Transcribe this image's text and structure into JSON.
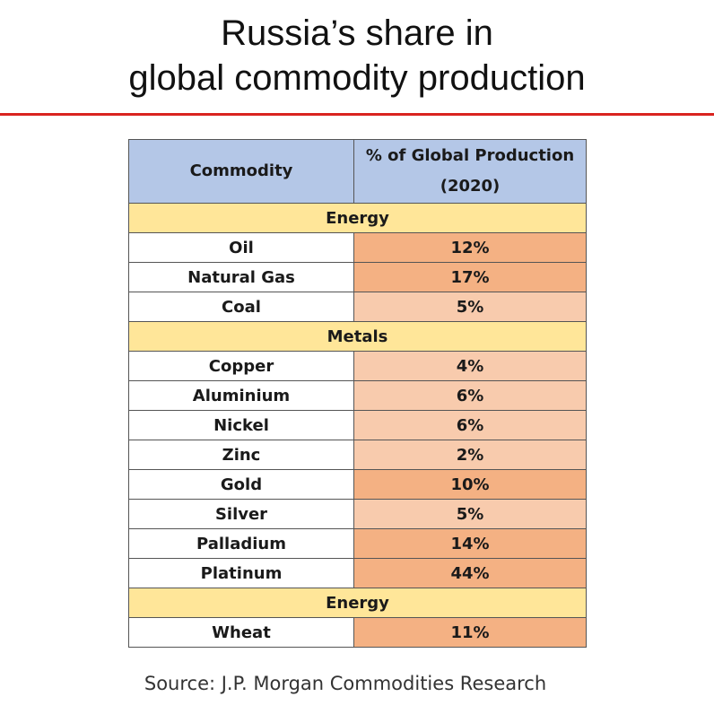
{
  "title_lines": [
    "Russia’s share in",
    "global commodity production"
  ],
  "source": "Source: J.P. Morgan Commodities Research",
  "colors": {
    "accent_rule": "#d9231f",
    "header_fill": "#b4c7e7",
    "section_fill": "#ffe699",
    "high_share_fill": "#f4b183",
    "low_share_fill": "#f8cbad"
  },
  "chart_data": {
    "type": "table",
    "columns": [
      "Commodity",
      "% of Global Production (2020)"
    ],
    "sections": [
      {
        "name": "Energy",
        "rows": [
          {
            "commodity": "Oil",
            "share": "12%",
            "value": 12,
            "shade": "high"
          },
          {
            "commodity": "Natural Gas",
            "share": "17%",
            "value": 17,
            "shade": "high"
          },
          {
            "commodity": "Coal",
            "share": "5%",
            "value": 5,
            "shade": "low"
          }
        ]
      },
      {
        "name": "Metals",
        "rows": [
          {
            "commodity": "Copper",
            "share": "4%",
            "value": 4,
            "shade": "low"
          },
          {
            "commodity": "Aluminium",
            "share": "6%",
            "value": 6,
            "shade": "low"
          },
          {
            "commodity": "Nickel",
            "share": "6%",
            "value": 6,
            "shade": "low"
          },
          {
            "commodity": "Zinc",
            "share": "2%",
            "value": 2,
            "shade": "low"
          },
          {
            "commodity": "Gold",
            "share": "10%",
            "value": 10,
            "shade": "high"
          },
          {
            "commodity": "Silver",
            "share": "5%",
            "value": 5,
            "shade": "low"
          },
          {
            "commodity": "Palladium",
            "share": "14%",
            "value": 14,
            "shade": "high"
          },
          {
            "commodity": "Platinum",
            "share": "44%",
            "value": 44,
            "shade": "high"
          }
        ]
      },
      {
        "name": "Energy",
        "rows": [
          {
            "commodity": "Wheat",
            "share": "11%",
            "value": 11,
            "shade": "high"
          }
        ]
      }
    ]
  }
}
